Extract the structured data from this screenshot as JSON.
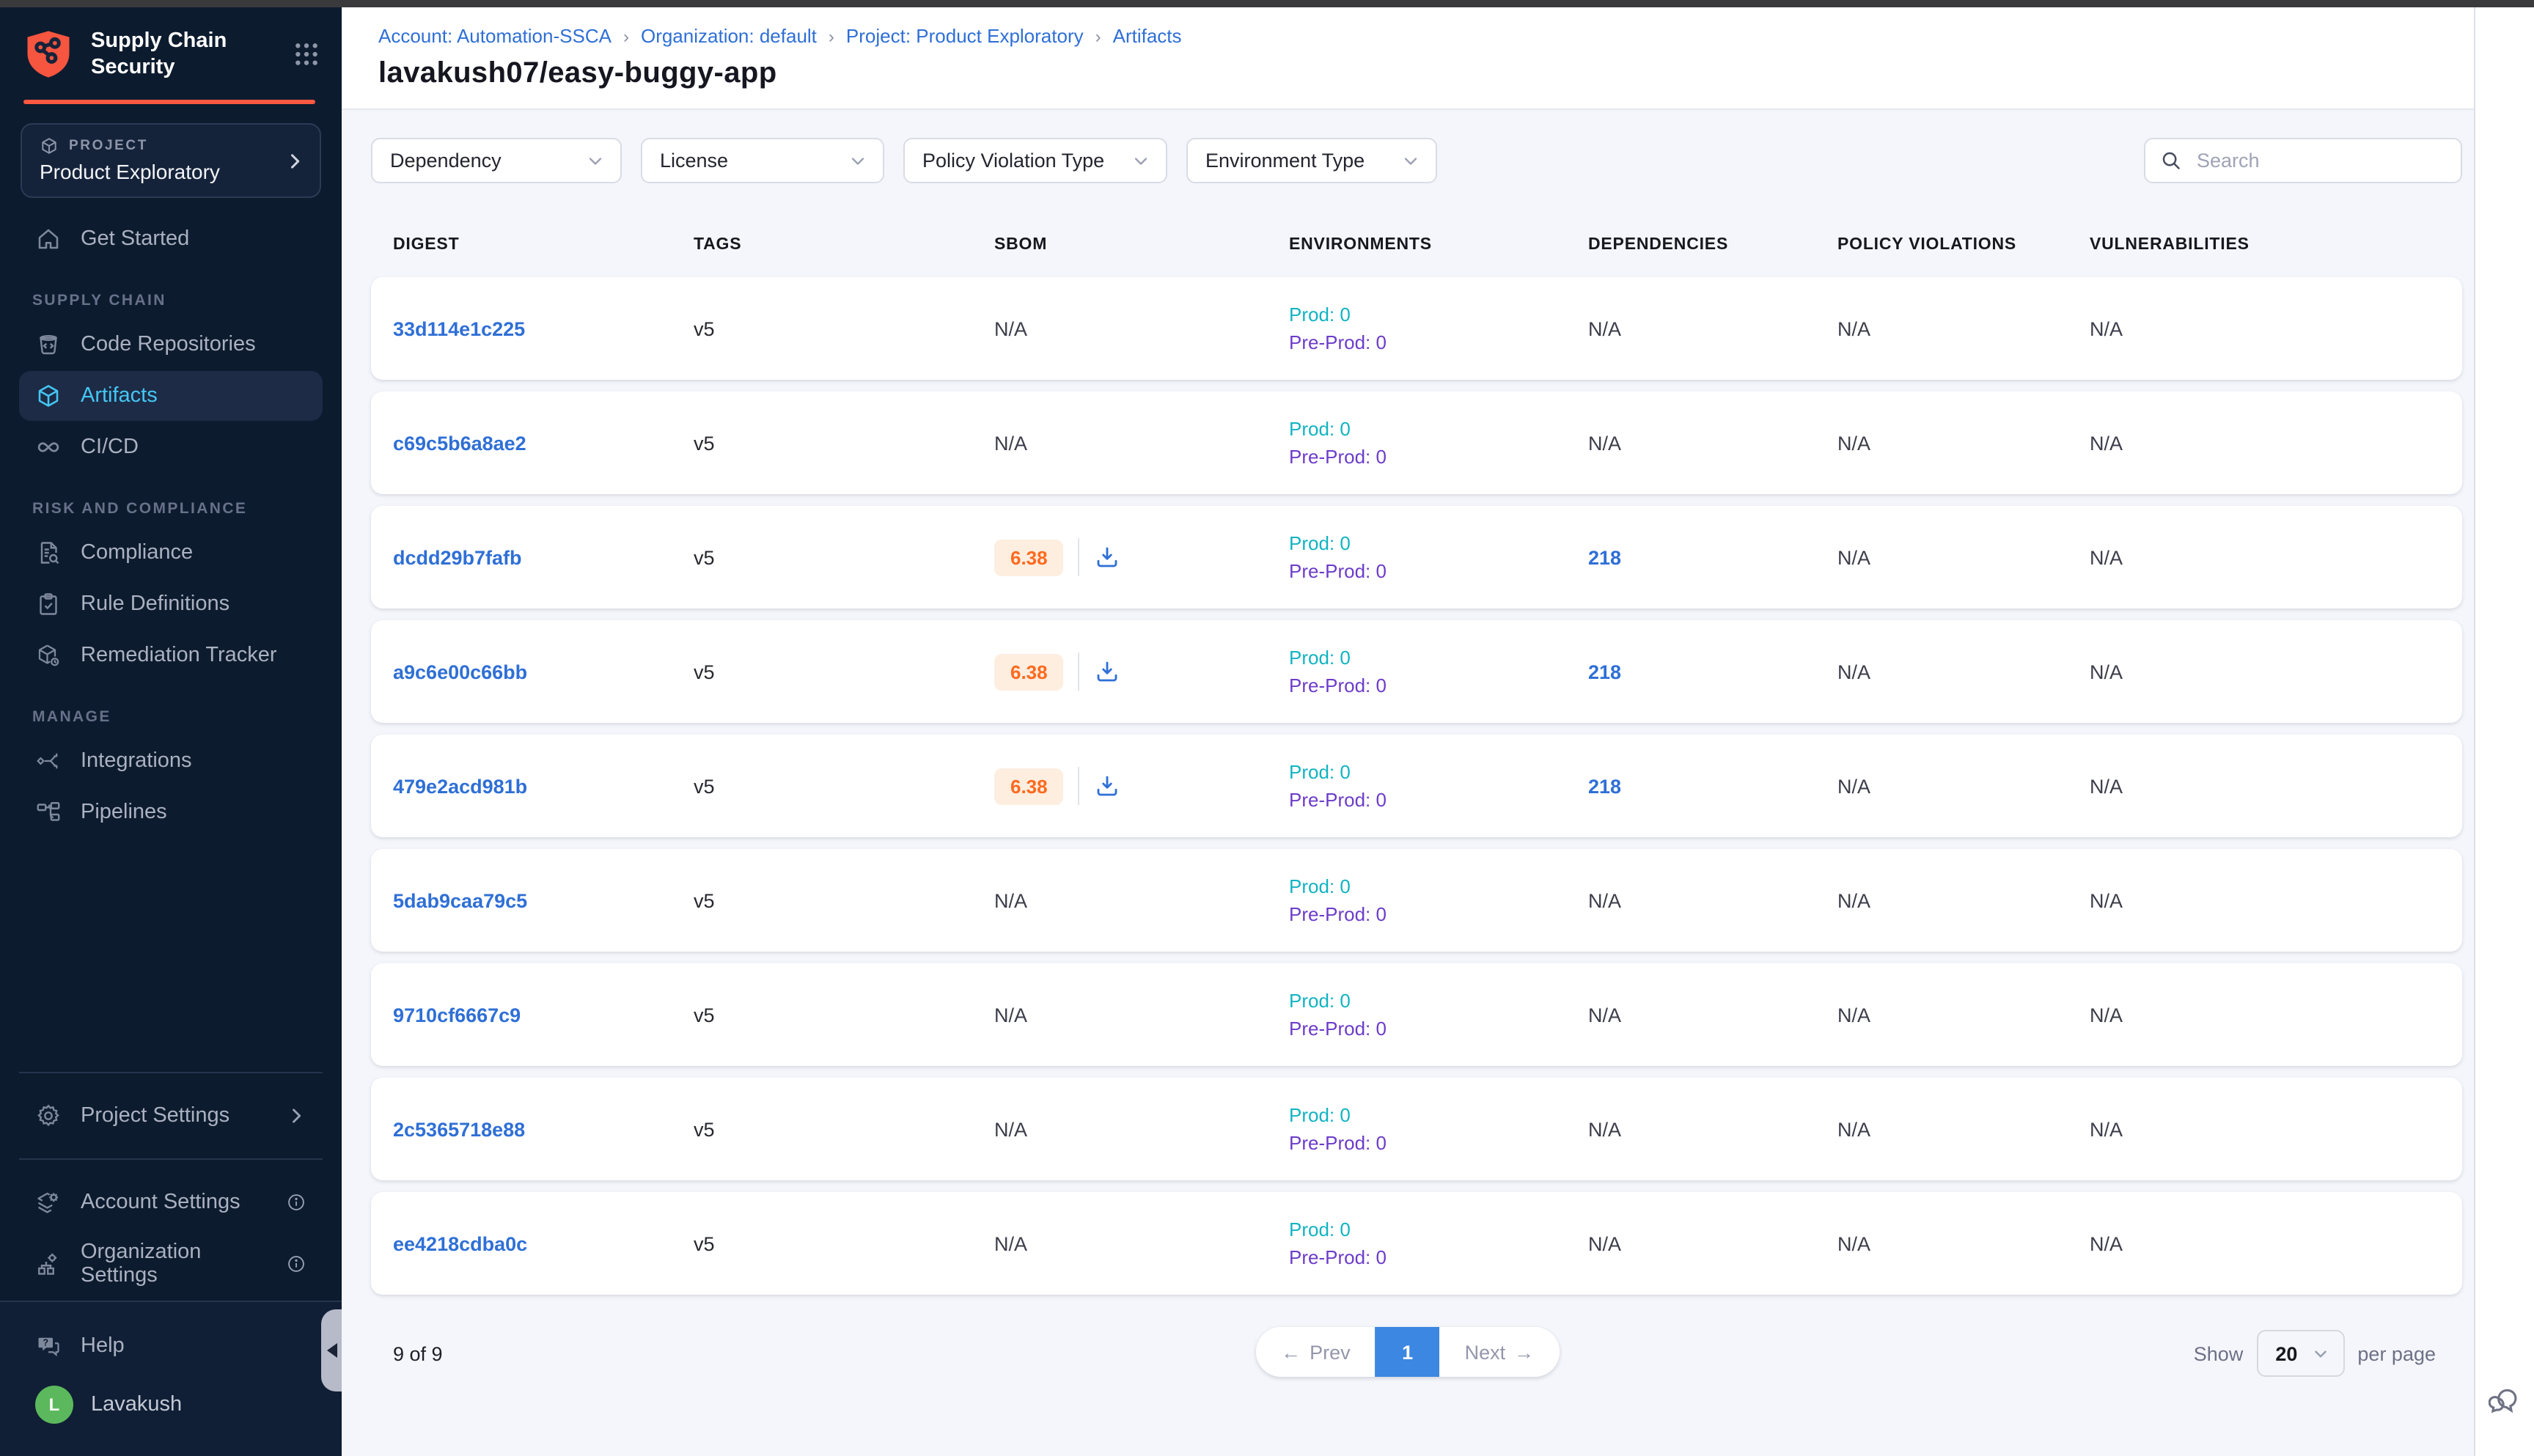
{
  "sidebar": {
    "logo": {
      "title_line1": "Supply Chain",
      "title_line2": "Security"
    },
    "project_selector": {
      "label": "PROJECT",
      "value": "Product Exploratory"
    },
    "sections": [
      {
        "label": null,
        "items": [
          {
            "id": "get-started",
            "label": "Get Started",
            "icon": "home"
          }
        ]
      },
      {
        "label": "SUPPLY CHAIN",
        "items": [
          {
            "id": "code-repositories",
            "label": "Code Repositories",
            "icon": "repo"
          },
          {
            "id": "artifacts",
            "label": "Artifacts",
            "icon": "cube",
            "active": true
          },
          {
            "id": "cicd",
            "label": "CI/CD",
            "icon": "infinity"
          }
        ]
      },
      {
        "label": "RISK AND COMPLIANCE",
        "items": [
          {
            "id": "compliance",
            "label": "Compliance",
            "icon": "doc-search"
          },
          {
            "id": "rule-definitions",
            "label": "Rule Definitions",
            "icon": "clipboard-check"
          },
          {
            "id": "remediation-tracker",
            "label": "Remediation Tracker",
            "icon": "cube-wrench"
          }
        ]
      },
      {
        "label": "MANAGE",
        "items": [
          {
            "id": "integrations",
            "label": "Integrations",
            "icon": "share"
          },
          {
            "id": "pipelines",
            "label": "Pipelines",
            "icon": "pipeline"
          }
        ]
      }
    ],
    "settings_items": [
      {
        "id": "project-settings",
        "label": "Project Settings",
        "icon": "gear",
        "chevron": true
      }
    ],
    "account_items": [
      {
        "id": "account-settings",
        "label": "Account Settings",
        "icon": "layers-gear",
        "info": true
      },
      {
        "id": "organization-settings",
        "label": "Organization Settings",
        "icon": "org-gear",
        "info": true
      }
    ],
    "footer_items": [
      {
        "id": "help",
        "label": "Help",
        "icon": "help-chat"
      }
    ],
    "user": {
      "name": "Lavakush",
      "avatar_letter": "L"
    }
  },
  "header": {
    "breadcrumb": [
      {
        "label": "Account: Automation-SSCA"
      },
      {
        "label": "Organization: default"
      },
      {
        "label": "Project: Product Exploratory"
      },
      {
        "label": "Artifacts"
      }
    ],
    "title": "lavakush07/easy-buggy-app"
  },
  "filters": [
    {
      "label": "Dependency",
      "width": 171
    },
    {
      "label": "License",
      "width": 166
    },
    {
      "label": "Policy Violation Type",
      "width": 180
    },
    {
      "label": "Environment Type",
      "width": 171
    }
  ],
  "search": {
    "placeholder": "Search"
  },
  "table": {
    "columns": [
      "DIGEST",
      "TAGS",
      "SBOM",
      "ENVIRONMENTS",
      "DEPENDENCIES",
      "POLICY VIOLATIONS",
      "VULNERABILITIES"
    ],
    "env_labels": {
      "prod": "Prod:",
      "preprod": "Pre-Prod:"
    },
    "na_text": "N/A",
    "rows": [
      {
        "digest": "33d114e1c225",
        "tag": "v5",
        "sbom_score": null,
        "prod": 0,
        "preprod": 0,
        "dependencies": null,
        "policy_violations": "N/A",
        "vulnerabilities": "N/A"
      },
      {
        "digest": "c69c5b6a8ae2",
        "tag": "v5",
        "sbom_score": null,
        "prod": 0,
        "preprod": 0,
        "dependencies": null,
        "policy_violations": "N/A",
        "vulnerabilities": "N/A"
      },
      {
        "digest": "dcdd29b7fafb",
        "tag": "v5",
        "sbom_score": "6.38",
        "prod": 0,
        "preprod": 0,
        "dependencies": "218",
        "policy_violations": "N/A",
        "vulnerabilities": "N/A"
      },
      {
        "digest": "a9c6e00c66bb",
        "tag": "v5",
        "sbom_score": "6.38",
        "prod": 0,
        "preprod": 0,
        "dependencies": "218",
        "policy_violations": "N/A",
        "vulnerabilities": "N/A"
      },
      {
        "digest": "479e2acd981b",
        "tag": "v5",
        "sbom_score": "6.38",
        "prod": 0,
        "preprod": 0,
        "dependencies": "218",
        "policy_violations": "N/A",
        "vulnerabilities": "N/A"
      },
      {
        "digest": "5dab9caa79c5",
        "tag": "v5",
        "sbom_score": null,
        "prod": 0,
        "preprod": 0,
        "dependencies": null,
        "policy_violations": "N/A",
        "vulnerabilities": "N/A"
      },
      {
        "digest": "9710cf6667c9",
        "tag": "v5",
        "sbom_score": null,
        "prod": 0,
        "preprod": 0,
        "dependencies": null,
        "policy_violations": "N/A",
        "vulnerabilities": "N/A"
      },
      {
        "digest": "2c5365718e88",
        "tag": "v5",
        "sbom_score": null,
        "prod": 0,
        "preprod": 0,
        "dependencies": null,
        "policy_violations": "N/A",
        "vulnerabilities": "N/A"
      },
      {
        "digest": "ee4218cdba0c",
        "tag": "v5",
        "sbom_score": null,
        "prod": 0,
        "preprod": 0,
        "dependencies": null,
        "policy_violations": "N/A",
        "vulnerabilities": "N/A"
      }
    ]
  },
  "pagination": {
    "summary": "9 of 9",
    "prev_label": "Prev",
    "current_page": "1",
    "next_label": "Next",
    "show_label": "Show",
    "page_size": "20",
    "per_page_label": "per page"
  },
  "colors": {
    "accent_orange": "#ff5841",
    "sidebar_bg": "#0d1b2e",
    "sidebar_active_bg": "#1d2b46",
    "sidebar_active_text": "#45c6f3",
    "link_blue": "#2f6fd6",
    "prod_teal": "#11b3c2",
    "preprod_purple": "#6c3cc9",
    "score_orange": "#ff6a1f",
    "score_bg": "#fdeee0",
    "pager_blue": "#3c87e2",
    "avatar_green": "#5cb85c"
  }
}
